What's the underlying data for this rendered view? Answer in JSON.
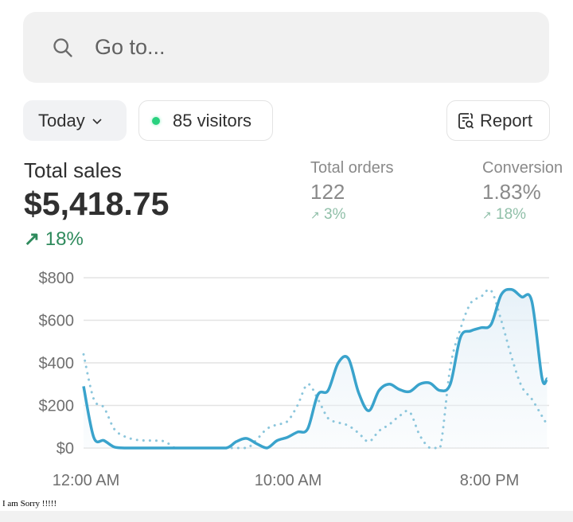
{
  "search": {
    "placeholder": "Go to...",
    "icon": "search-icon"
  },
  "filters": {
    "date_label": "Today",
    "visitors_label": "85 visitors",
    "visitors_dot_color": "#29d17f",
    "report_label": "Report"
  },
  "metrics": [
    {
      "label": "Total sales",
      "value": "$5,418.75",
      "change": "18%",
      "trend": "up"
    },
    {
      "label": "Total orders",
      "value": "122",
      "change": "3%",
      "trend": "up"
    },
    {
      "label": "Conversion",
      "value": "1.83%",
      "change": "18%",
      "trend": "up"
    }
  ],
  "chart_data": {
    "type": "line",
    "ylim": [
      0,
      800
    ],
    "yticks": [
      "$0",
      "$200",
      "$400",
      "$600",
      "$800"
    ],
    "xticks": [
      "12:00 AM",
      "10:00 AM",
      "8:00 PM"
    ],
    "grid": true,
    "colors": {
      "current": "#3aa3cc",
      "previous": "#8cc6dc"
    },
    "series": [
      {
        "style": "solid",
        "points": [
          [
            "00:00",
            290
          ],
          [
            "00:30",
            50
          ],
          [
            "01:00",
            35
          ],
          [
            "01:30",
            5
          ],
          [
            "02:00",
            0
          ],
          [
            "03:00",
            0
          ],
          [
            "04:00",
            0
          ],
          [
            "05:00",
            0
          ],
          [
            "06:00",
            0
          ],
          [
            "07:00",
            0
          ],
          [
            "07:30",
            30
          ],
          [
            "08:00",
            45
          ],
          [
            "08:30",
            20
          ],
          [
            "09:00",
            0
          ],
          [
            "09:30",
            35
          ],
          [
            "10:00",
            50
          ],
          [
            "10:30",
            75
          ],
          [
            "11:00",
            90
          ],
          [
            "11:30",
            250
          ],
          [
            "12:00",
            270
          ],
          [
            "12:30",
            400
          ],
          [
            "13:00",
            420
          ],
          [
            "13:30",
            260
          ],
          [
            "14:00",
            175
          ],
          [
            "14:30",
            270
          ],
          [
            "15:00",
            300
          ],
          [
            "15:30",
            275
          ],
          [
            "16:00",
            265
          ],
          [
            "16:30",
            300
          ],
          [
            "17:00",
            305
          ],
          [
            "17:30",
            270
          ],
          [
            "18:00",
            300
          ],
          [
            "18:30",
            520
          ],
          [
            "19:00",
            550
          ],
          [
            "19:30",
            565
          ],
          [
            "20:00",
            580
          ],
          [
            "20:30",
            720
          ],
          [
            "21:00",
            745
          ],
          [
            "21:30",
            710
          ],
          [
            "22:00",
            690
          ],
          [
            "22:30",
            330
          ],
          [
            "22:45",
            325
          ]
        ]
      },
      {
        "style": "dotted",
        "points": [
          [
            "00:00",
            440
          ],
          [
            "00:30",
            230
          ],
          [
            "01:00",
            190
          ],
          [
            "01:30",
            90
          ],
          [
            "02:00",
            55
          ],
          [
            "02:30",
            40
          ],
          [
            "03:00",
            35
          ],
          [
            "03:30",
            35
          ],
          [
            "04:00",
            30
          ],
          [
            "04:30",
            0
          ],
          [
            "05:00",
            0
          ],
          [
            "06:00",
            0
          ],
          [
            "07:00",
            0
          ],
          [
            "08:00",
            0
          ],
          [
            "08:30",
            40
          ],
          [
            "09:00",
            90
          ],
          [
            "09:30",
            110
          ],
          [
            "10:00",
            125
          ],
          [
            "10:30",
            200
          ],
          [
            "11:00",
            300
          ],
          [
            "11:30",
            230
          ],
          [
            "12:00",
            140
          ],
          [
            "12:30",
            120
          ],
          [
            "13:00",
            105
          ],
          [
            "13:30",
            70
          ],
          [
            "14:00",
            30
          ],
          [
            "14:30",
            80
          ],
          [
            "15:00",
            110
          ],
          [
            "15:30",
            150
          ],
          [
            "16:00",
            170
          ],
          [
            "16:30",
            60
          ],
          [
            "17:00",
            0
          ],
          [
            "17:30",
            0
          ],
          [
            "18:00",
            380
          ],
          [
            "18:30",
            560
          ],
          [
            "19:00",
            680
          ],
          [
            "19:30",
            710
          ],
          [
            "20:00",
            740
          ],
          [
            "20:30",
            600
          ],
          [
            "21:00",
            430
          ],
          [
            "21:30",
            290
          ],
          [
            "22:00",
            230
          ],
          [
            "22:30",
            150
          ],
          [
            "22:45",
            110
          ]
        ]
      }
    ]
  },
  "footer_note": "I am Sorry !!!!!"
}
